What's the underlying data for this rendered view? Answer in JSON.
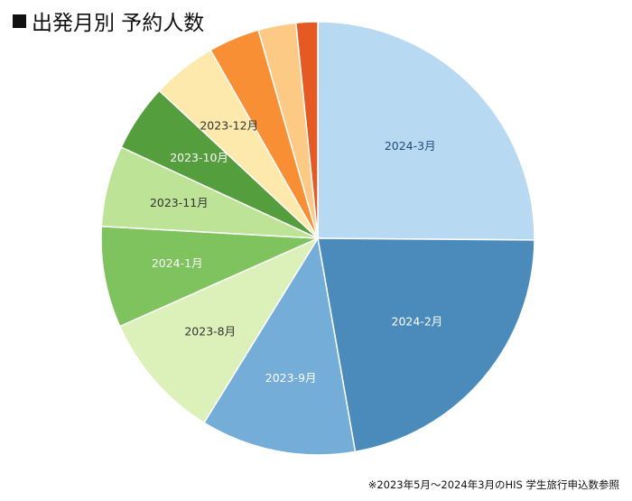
{
  "chart_data": {
    "type": "pie",
    "title": "出発月別 予約人数",
    "slices": [
      {
        "label": "2024-3月",
        "value": 25.0,
        "color": "#b8d9f2",
        "label_color": "#1f4e79"
      },
      {
        "label": "2024-2月",
        "value": 22.0,
        "color": "#4b8bbb",
        "label_color": "#ffffff"
      },
      {
        "label": "2023-9月",
        "value": 11.5,
        "color": "#73add8",
        "label_color": "#ffffff"
      },
      {
        "label": "2023-8月",
        "value": 9.5,
        "color": "#dcf1b9",
        "label_color": "#333333"
      },
      {
        "label": "2024-1月",
        "value": 7.5,
        "color": "#7ec35d",
        "label_color": "#ffffff"
      },
      {
        "label": "2023-11月",
        "value": 6.0,
        "color": "#bde496",
        "label_color": "#333333"
      },
      {
        "label": "2023-10月",
        "value": 5.0,
        "color": "#559e3d",
        "label_color": "#ffffff"
      },
      {
        "label": "2023-12月",
        "value": 4.8,
        "color": "#fde9ac",
        "label_color": "#333333"
      },
      {
        "label": "",
        "value": 3.8,
        "color": "#f88f35",
        "label_color": "#333333"
      },
      {
        "label": "",
        "value": 2.8,
        "color": "#fdca86",
        "label_color": "#333333"
      },
      {
        "label": "",
        "value": 1.6,
        "color": "#e45a22",
        "label_color": "#333333"
      }
    ]
  },
  "footnote": "※2023年5月～2024年3月のHIS 学生旅行申込数参照"
}
